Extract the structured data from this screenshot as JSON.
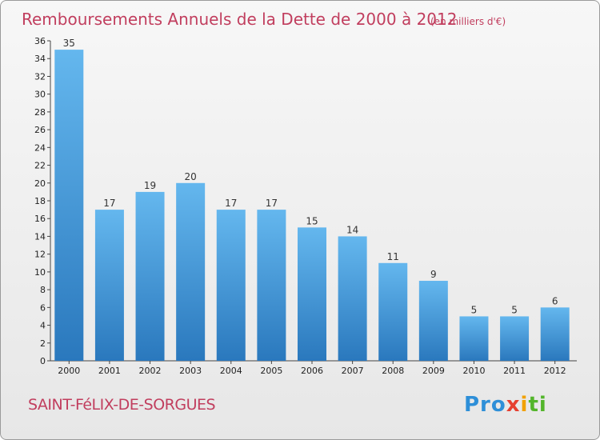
{
  "chart_data": {
    "type": "bar",
    "title": "Remboursements Annuels de la Dette de 2000 à 2012",
    "subtitle": "(en milliers d'€)",
    "categories": [
      "2000",
      "2001",
      "2002",
      "2003",
      "2004",
      "2005",
      "2006",
      "2007",
      "2008",
      "2009",
      "2010",
      "2011",
      "2012"
    ],
    "values": [
      35,
      17,
      19,
      20,
      17,
      17,
      15,
      14,
      11,
      9,
      5,
      5,
      6
    ],
    "ylim": [
      0,
      36
    ],
    "yticks": [
      0,
      2,
      4,
      6,
      8,
      10,
      12,
      14,
      16,
      18,
      20,
      22,
      24,
      26,
      28,
      30,
      32,
      34,
      36
    ],
    "grid": false,
    "bar_color": "#3f97d8"
  },
  "footer": {
    "commune": "SAINT-FéLIX-DE-SORGUES",
    "logo_text": "Proxiti",
    "logo_colors": [
      "#2e8fd8",
      "#e63f30",
      "#f2a100",
      "#53b52b"
    ]
  }
}
